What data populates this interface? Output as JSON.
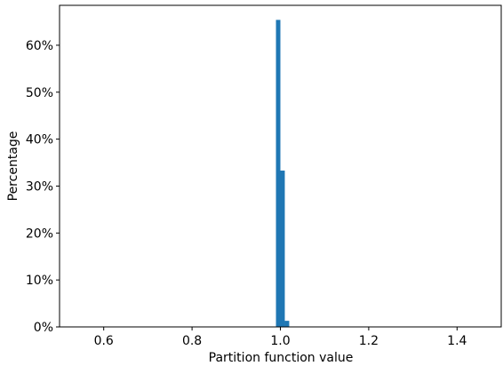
{
  "chart_data": {
    "type": "bar",
    "title": "",
    "xlabel": "Partition function value",
    "ylabel": "Percentage",
    "xlim": [
      0.5,
      1.5
    ],
    "ylim": [
      0,
      0.685
    ],
    "grid": false,
    "bar_color": "#1f77b4",
    "x_ticks": [
      {
        "value": 0.6,
        "label": "0.6"
      },
      {
        "value": 0.8,
        "label": "0.8"
      },
      {
        "value": 1.0,
        "label": "1.0"
      },
      {
        "value": 1.2,
        "label": "1.2"
      },
      {
        "value": 1.4,
        "label": "1.4"
      }
    ],
    "y_ticks": [
      {
        "value": 0.0,
        "label": "0%"
      },
      {
        "value": 0.1,
        "label": "10%"
      },
      {
        "value": 0.2,
        "label": "20%"
      },
      {
        "value": 0.3,
        "label": "30%"
      },
      {
        "value": 0.4,
        "label": "40%"
      },
      {
        "value": 0.5,
        "label": "50%"
      },
      {
        "value": 0.6,
        "label": "60%"
      }
    ],
    "bins": [
      {
        "x0": 0.99,
        "x1": 1.0,
        "value": 0.654
      },
      {
        "x0": 1.0,
        "x1": 1.01,
        "value": 0.333
      },
      {
        "x0": 1.01,
        "x1": 1.02,
        "value": 0.013
      }
    ]
  }
}
